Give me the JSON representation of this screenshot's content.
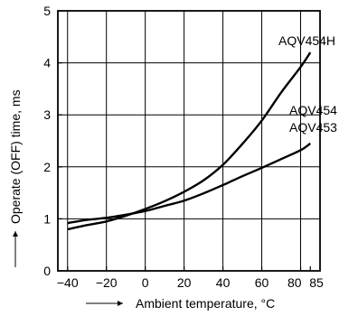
{
  "chart_data": {
    "type": "line",
    "title": "",
    "xlabel": "Ambient temperature, °C",
    "ylabel": "Operate (OFF) time, ms",
    "xlim": [
      -45,
      90
    ],
    "ylim": [
      0,
      5
    ],
    "xticks": [
      -40,
      -20,
      0,
      20,
      40,
      60,
      80,
      85
    ],
    "xtick_labels": [
      "−40",
      "−20",
      "0",
      "20",
      "40",
      "60",
      "80",
      "85"
    ],
    "yticks": [
      0,
      1,
      2,
      3,
      4,
      5
    ],
    "ytick_labels": [
      "0",
      "1",
      "2",
      "3",
      "4",
      "5"
    ],
    "grid": true,
    "legend": "none",
    "series": [
      {
        "name": "AQV454H",
        "x": [
          -40,
          -30,
          -20,
          -10,
          0,
          10,
          20,
          30,
          40,
          50,
          60,
          70,
          80,
          85
        ],
        "y": [
          0.8,
          0.88,
          0.95,
          1.06,
          1.19,
          1.34,
          1.52,
          1.74,
          2.04,
          2.44,
          2.89,
          3.43,
          3.92,
          4.2
        ]
      },
      {
        "name": "AQV454\nAQV453",
        "x": [
          -40,
          -30,
          -20,
          -10,
          0,
          10,
          20,
          30,
          40,
          50,
          60,
          70,
          80,
          85
        ],
        "y": [
          0.92,
          0.98,
          1.02,
          1.08,
          1.15,
          1.25,
          1.35,
          1.49,
          1.65,
          1.82,
          1.98,
          2.15,
          2.32,
          2.45
        ]
      }
    ],
    "series_labels": [
      {
        "text": "AQV454H"
      },
      {
        "lines": [
          "AQV454",
          "AQV453"
        ]
      }
    ]
  }
}
